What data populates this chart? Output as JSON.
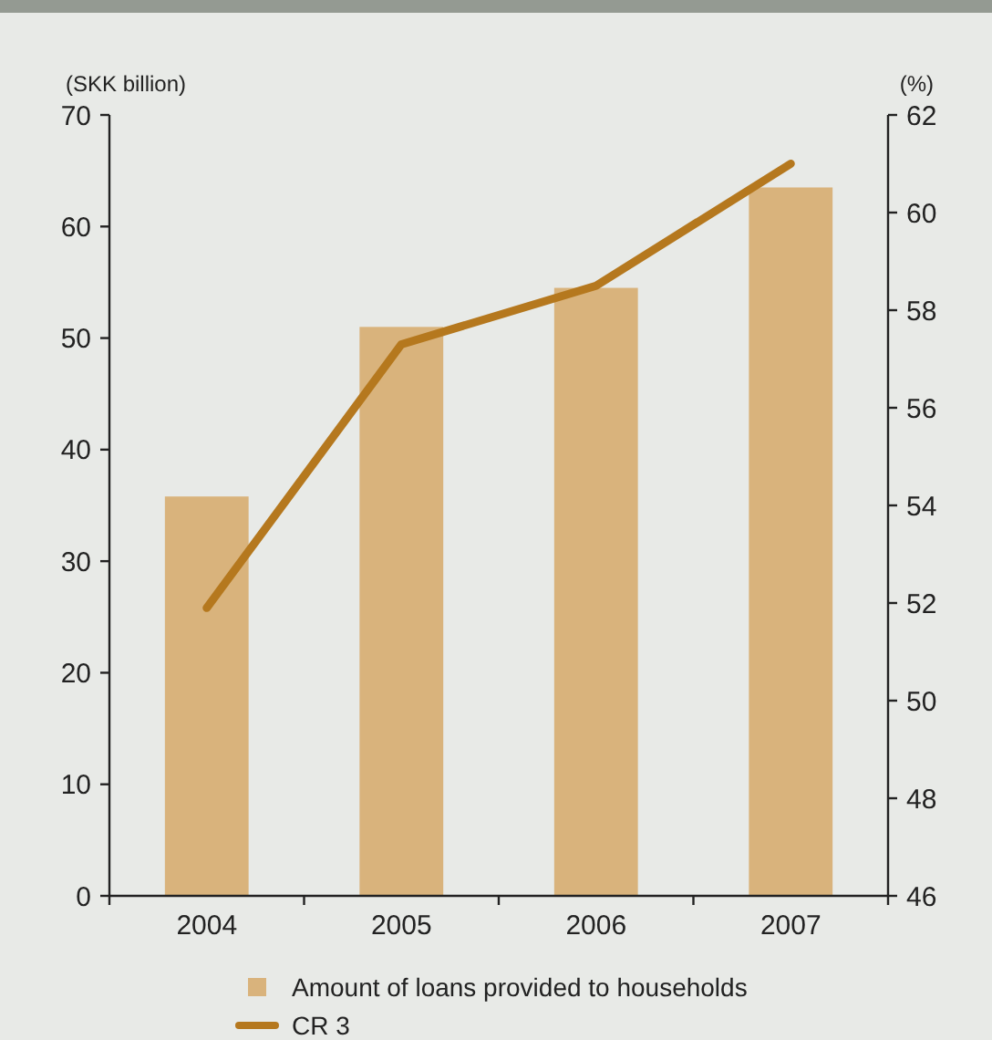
{
  "chart_data": {
    "type": "bar",
    "categories": [
      "2004",
      "2005",
      "2006",
      "2007"
    ],
    "series": [
      {
        "name": "Amount of loans provided to households",
        "color": "#d9b37c",
        "values": [
          35.8,
          51.0,
          54.5,
          63.5
        ]
      },
      {
        "name": "CR 3",
        "type": "line",
        "axis": "y2",
        "color": "#b5781e",
        "values": [
          51.9,
          57.3,
          58.5,
          61.0
        ]
      }
    ],
    "ylabel": "(SKK billion)",
    "y2label": "(%)",
    "ylim": [
      0,
      70
    ],
    "yticks": [
      0,
      10,
      20,
      30,
      40,
      50,
      60,
      70
    ],
    "y2lim": [
      46,
      62
    ],
    "y2ticks": [
      46,
      48,
      50,
      52,
      54,
      56,
      58,
      60,
      62
    ],
    "legend": "bottom",
    "grid": false
  }
}
